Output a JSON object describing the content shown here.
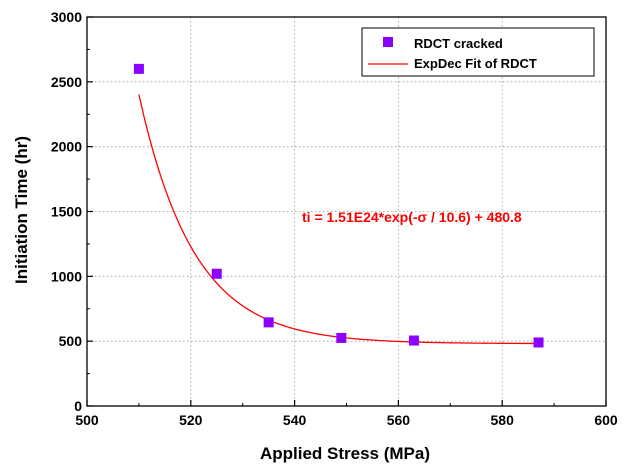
{
  "chart_data": {
    "type": "scatter",
    "xlabel": "Applied Stress (MPa)",
    "ylabel": "Initiation Time (hr)",
    "xlim": [
      500,
      600
    ],
    "ylim": [
      0,
      3000
    ],
    "x_ticks": [
      "500",
      "520",
      "540",
      "560",
      "580",
      "600"
    ],
    "y_ticks": [
      "0",
      "500",
      "1000",
      "1500",
      "2000",
      "2500",
      "3000"
    ],
    "grid": true,
    "legend_position": "top-right",
    "series": [
      {
        "name": "RDCT cracked",
        "kind": "scatter",
        "marker": "square",
        "color": "#8b00ff",
        "x": [
          510,
          525,
          535,
          549,
          563,
          587
        ],
        "y": [
          2600,
          1020,
          645,
          525,
          505,
          490
        ]
      },
      {
        "name": "ExpDec Fit of RDCT",
        "kind": "line",
        "color": "#ff0000",
        "model": {
          "A": 1.51e+24,
          "t": 10.6,
          "y0": 480.8
        },
        "x_range": [
          510,
          587
        ]
      }
    ],
    "annotations": [
      {
        "text": "ti = 1.51E24*exp(-σ / 10.6) + 480.8",
        "color": "#ff0000"
      }
    ]
  }
}
